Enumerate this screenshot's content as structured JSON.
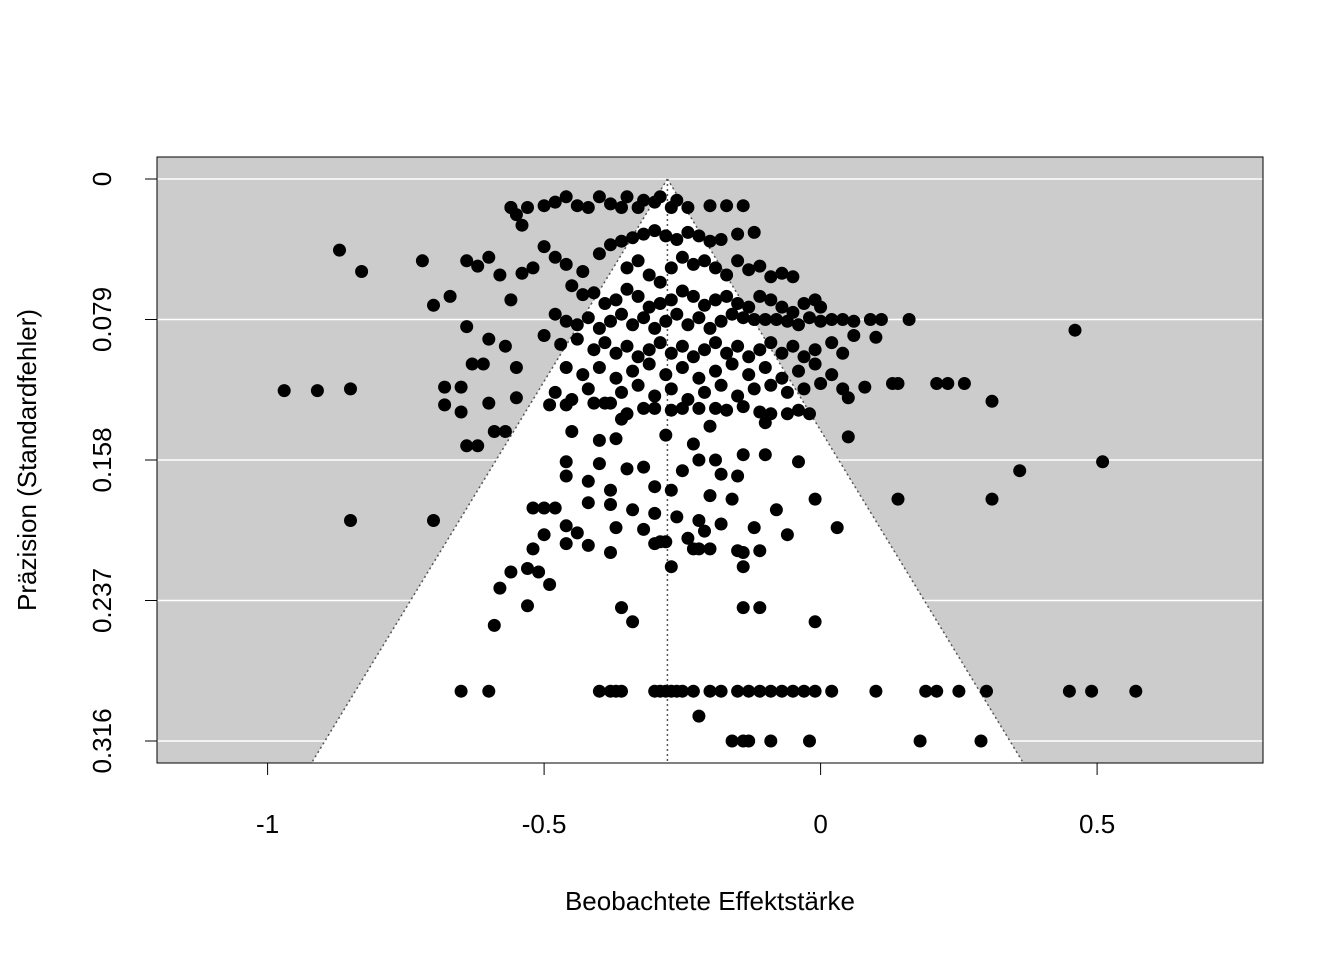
{
  "chart_data": {
    "type": "scatter",
    "title": "",
    "xlabel": "Beobachtete Effektstärke",
    "ylabel": "Präzision (Standardfehler)",
    "xlim": [
      -1.2,
      0.8
    ],
    "ylim": [
      0.316,
      0.0
    ],
    "y_reversed": true,
    "x_ticks": [
      {
        "value": -1,
        "label": "-1"
      },
      {
        "value": -0.5,
        "label": "-0.5"
      },
      {
        "value": 0,
        "label": "0"
      },
      {
        "value": 0.5,
        "label": "0.5"
      }
    ],
    "y_ticks": [
      {
        "value": 0.0,
        "label": "0"
      },
      {
        "value": 0.079,
        "label": "0.079"
      },
      {
        "value": 0.158,
        "label": "0.158"
      },
      {
        "value": 0.237,
        "label": "0.237"
      },
      {
        "value": 0.316,
        "label": "0.316"
      }
    ],
    "grid": "horizontal",
    "funnel": {
      "center": -0.277,
      "z": 1.96,
      "se_max": 0.33
    },
    "colors": {
      "background": "#cccccc",
      "funnel": "#ffffff",
      "grid": "#ffffff",
      "points": "#000000"
    },
    "points": [
      [
        -0.97,
        0.119
      ],
      [
        -0.91,
        0.119
      ],
      [
        -0.85,
        0.118
      ],
      [
        -0.87,
        0.04
      ],
      [
        -0.83,
        0.052
      ],
      [
        -0.85,
        0.192
      ],
      [
        -0.7,
        0.192
      ],
      [
        -0.72,
        0.046
      ],
      [
        -0.7,
        0.071
      ],
      [
        -0.67,
        0.066
      ],
      [
        -0.64,
        0.046
      ],
      [
        -0.62,
        0.049
      ],
      [
        -0.6,
        0.044
      ],
      [
        -0.58,
        0.054
      ],
      [
        -0.56,
        0.068
      ],
      [
        -0.54,
        0.053
      ],
      [
        -0.52,
        0.05
      ],
      [
        -0.65,
        0.117
      ],
      [
        -0.68,
        0.117
      ],
      [
        -0.68,
        0.127
      ],
      [
        -0.65,
        0.131
      ],
      [
        -0.6,
        0.126
      ],
      [
        -0.64,
        0.083
      ],
      [
        -0.6,
        0.09
      ],
      [
        -0.57,
        0.094
      ],
      [
        -0.61,
        0.104
      ],
      [
        -0.63,
        0.104
      ],
      [
        -0.55,
        0.106
      ],
      [
        -0.55,
        0.123
      ],
      [
        -0.59,
        0.142
      ],
      [
        -0.57,
        0.142
      ],
      [
        -0.62,
        0.15
      ],
      [
        -0.64,
        0.15
      ],
      [
        -0.56,
        0.016
      ],
      [
        -0.55,
        0.02
      ],
      [
        -0.54,
        0.026
      ],
      [
        -0.53,
        0.016
      ],
      [
        -0.56,
        0.016
      ],
      [
        -0.5,
        0.015
      ],
      [
        -0.48,
        0.013
      ],
      [
        -0.46,
        0.01
      ],
      [
        -0.44,
        0.015
      ],
      [
        -0.42,
        0.016
      ],
      [
        -0.4,
        0.01
      ],
      [
        -0.38,
        0.014
      ],
      [
        -0.35,
        0.01
      ],
      [
        -0.32,
        0.012
      ],
      [
        -0.3,
        0.013
      ],
      [
        -0.27,
        0.016
      ],
      [
        -0.24,
        0.016
      ],
      [
        -0.2,
        0.015
      ],
      [
        -0.17,
        0.015
      ],
      [
        -0.14,
        0.015
      ],
      [
        -0.36,
        0.016
      ],
      [
        -0.33,
        0.016
      ],
      [
        -0.29,
        0.01
      ],
      [
        -0.26,
        0.012
      ],
      [
        -0.5,
        0.038
      ],
      [
        -0.48,
        0.044
      ],
      [
        -0.46,
        0.048
      ],
      [
        -0.43,
        0.052
      ],
      [
        -0.4,
        0.042
      ],
      [
        -0.38,
        0.037
      ],
      [
        -0.36,
        0.035
      ],
      [
        -0.34,
        0.033
      ],
      [
        -0.32,
        0.031
      ],
      [
        -0.3,
        0.029
      ],
      [
        -0.28,
        0.032
      ],
      [
        -0.26,
        0.034
      ],
      [
        -0.24,
        0.03
      ],
      [
        -0.22,
        0.032
      ],
      [
        -0.2,
        0.035
      ],
      [
        -0.18,
        0.034
      ],
      [
        -0.15,
        0.031
      ],
      [
        -0.12,
        0.03
      ],
      [
        -0.35,
        0.05
      ],
      [
        -0.33,
        0.046
      ],
      [
        -0.31,
        0.054
      ],
      [
        -0.29,
        0.058
      ],
      [
        -0.27,
        0.05
      ],
      [
        -0.25,
        0.044
      ],
      [
        -0.23,
        0.048
      ],
      [
        -0.21,
        0.046
      ],
      [
        -0.19,
        0.05
      ],
      [
        -0.17,
        0.054
      ],
      [
        -0.15,
        0.046
      ],
      [
        -0.13,
        0.051
      ],
      [
        -0.11,
        0.049
      ],
      [
        -0.09,
        0.055
      ],
      [
        -0.07,
        0.053
      ],
      [
        -0.05,
        0.055
      ],
      [
        -0.45,
        0.06
      ],
      [
        -0.43,
        0.065
      ],
      [
        -0.41,
        0.064
      ],
      [
        -0.39,
        0.07
      ],
      [
        -0.37,
        0.068
      ],
      [
        -0.35,
        0.062
      ],
      [
        -0.33,
        0.066
      ],
      [
        -0.31,
        0.072
      ],
      [
        -0.29,
        0.07
      ],
      [
        -0.27,
        0.068
      ],
      [
        -0.25,
        0.063
      ],
      [
        -0.23,
        0.066
      ],
      [
        -0.21,
        0.071
      ],
      [
        -0.19,
        0.068
      ],
      [
        -0.17,
        0.066
      ],
      [
        -0.15,
        0.07
      ],
      [
        -0.13,
        0.072
      ],
      [
        -0.11,
        0.066
      ],
      [
        -0.09,
        0.068
      ],
      [
        -0.07,
        0.072
      ],
      [
        -0.05,
        0.075
      ],
      [
        -0.03,
        0.07
      ],
      [
        -0.01,
        0.068
      ],
      [
        0.0,
        0.072
      ],
      [
        -0.48,
        0.076
      ],
      [
        -0.46,
        0.08
      ],
      [
        -0.44,
        0.082
      ],
      [
        -0.42,
        0.078
      ],
      [
        -0.4,
        0.084
      ],
      [
        -0.38,
        0.08
      ],
      [
        -0.36,
        0.076
      ],
      [
        -0.34,
        0.082
      ],
      [
        -0.32,
        0.078
      ],
      [
        -0.3,
        0.084
      ],
      [
        -0.28,
        0.08
      ],
      [
        -0.26,
        0.076
      ],
      [
        -0.24,
        0.082
      ],
      [
        -0.22,
        0.078
      ],
      [
        -0.2,
        0.084
      ],
      [
        -0.18,
        0.08
      ],
      [
        -0.16,
        0.076
      ],
      [
        -0.14,
        0.078
      ],
      [
        -0.12,
        0.079
      ],
      [
        -0.1,
        0.079
      ],
      [
        -0.08,
        0.079
      ],
      [
        -0.06,
        0.08
      ],
      [
        -0.04,
        0.082
      ],
      [
        -0.02,
        0.078
      ],
      [
        0.0,
        0.08
      ],
      [
        0.02,
        0.079
      ],
      [
        0.04,
        0.079
      ],
      [
        0.06,
        0.08
      ],
      [
        0.09,
        0.079
      ],
      [
        0.11,
        0.079
      ],
      [
        0.16,
        0.079
      ],
      [
        -0.5,
        0.088
      ],
      [
        -0.47,
        0.093
      ],
      [
        -0.44,
        0.09
      ],
      [
        -0.41,
        0.096
      ],
      [
        -0.39,
        0.092
      ],
      [
        -0.37,
        0.098
      ],
      [
        -0.35,
        0.094
      ],
      [
        -0.33,
        0.1
      ],
      [
        -0.31,
        0.096
      ],
      [
        -0.29,
        0.092
      ],
      [
        -0.27,
        0.098
      ],
      [
        -0.25,
        0.094
      ],
      [
        -0.23,
        0.1
      ],
      [
        -0.21,
        0.096
      ],
      [
        -0.19,
        0.092
      ],
      [
        -0.17,
        0.098
      ],
      [
        -0.15,
        0.094
      ],
      [
        -0.13,
        0.1
      ],
      [
        -0.11,
        0.096
      ],
      [
        -0.09,
        0.092
      ],
      [
        -0.07,
        0.098
      ],
      [
        -0.05,
        0.094
      ],
      [
        -0.03,
        0.1
      ],
      [
        -0.01,
        0.096
      ],
      [
        0.02,
        0.092
      ],
      [
        0.04,
        0.098
      ],
      [
        0.06,
        0.088
      ],
      [
        0.1,
        0.089
      ],
      [
        -0.46,
        0.106
      ],
      [
        -0.43,
        0.11
      ],
      [
        -0.4,
        0.106
      ],
      [
        -0.37,
        0.112
      ],
      [
        -0.34,
        0.108
      ],
      [
        -0.31,
        0.104
      ],
      [
        -0.28,
        0.11
      ],
      [
        -0.25,
        0.106
      ],
      [
        -0.22,
        0.112
      ],
      [
        -0.19,
        0.108
      ],
      [
        -0.16,
        0.104
      ],
      [
        -0.13,
        0.11
      ],
      [
        -0.1,
        0.106
      ],
      [
        -0.07,
        0.112
      ],
      [
        -0.04,
        0.108
      ],
      [
        -0.01,
        0.104
      ],
      [
        0.02,
        0.11
      ],
      [
        -0.48,
        0.12
      ],
      [
        -0.45,
        0.124
      ],
      [
        -0.42,
        0.118
      ],
      [
        -0.39,
        0.126
      ],
      [
        -0.36,
        0.12
      ],
      [
        -0.33,
        0.116
      ],
      [
        -0.3,
        0.122
      ],
      [
        -0.27,
        0.118
      ],
      [
        -0.24,
        0.124
      ],
      [
        -0.21,
        0.12
      ],
      [
        -0.18,
        0.116
      ],
      [
        -0.15,
        0.122
      ],
      [
        -0.12,
        0.118
      ],
      [
        -0.09,
        0.116
      ],
      [
        -0.06,
        0.12
      ],
      [
        -0.03,
        0.118
      ],
      [
        0.0,
        0.115
      ],
      [
        0.04,
        0.118
      ],
      [
        0.08,
        0.117
      ],
      [
        0.13,
        0.115
      ],
      [
        0.14,
        0.115
      ],
      [
        0.21,
        0.115
      ],
      [
        0.23,
        0.115
      ],
      [
        0.26,
        0.115
      ],
      [
        0.05,
        0.123
      ],
      [
        0.31,
        0.125
      ],
      [
        -0.49,
        0.127
      ],
      [
        -0.46,
        0.127
      ],
      [
        -0.41,
        0.126
      ],
      [
        -0.38,
        0.126
      ],
      [
        -0.35,
        0.132
      ],
      [
        -0.32,
        0.129
      ],
      [
        -0.3,
        0.129
      ],
      [
        -0.27,
        0.13
      ],
      [
        -0.25,
        0.129
      ],
      [
        -0.22,
        0.129
      ],
      [
        -0.19,
        0.129
      ],
      [
        -0.17,
        0.13
      ],
      [
        -0.14,
        0.128
      ],
      [
        -0.11,
        0.131
      ],
      [
        -0.09,
        0.132
      ],
      [
        -0.06,
        0.132
      ],
      [
        -0.04,
        0.13
      ],
      [
        -0.02,
        0.132
      ],
      [
        -0.36,
        0.135
      ],
      [
        -0.2,
        0.139
      ],
      [
        -0.1,
        0.137
      ],
      [
        -0.45,
        0.142
      ],
      [
        -0.4,
        0.147
      ],
      [
        -0.37,
        0.146
      ],
      [
        -0.28,
        0.144
      ],
      [
        -0.23,
        0.149
      ],
      [
        -0.19,
        0.158
      ],
      [
        -0.14,
        0.155
      ],
      [
        -0.22,
        0.158
      ],
      [
        -0.46,
        0.159
      ],
      [
        -0.4,
        0.16
      ],
      [
        -0.35,
        0.163
      ],
      [
        -0.32,
        0.162
      ],
      [
        -0.25,
        0.164
      ],
      [
        -0.18,
        0.166
      ],
      [
        -0.15,
        0.167
      ],
      [
        -0.1,
        0.155
      ],
      [
        -0.04,
        0.159
      ],
      [
        0.05,
        0.145
      ],
      [
        -0.46,
        0.167
      ],
      [
        -0.42,
        0.17
      ],
      [
        -0.38,
        0.175
      ],
      [
        -0.3,
        0.173
      ],
      [
        -0.27,
        0.175
      ],
      [
        -0.2,
        0.178
      ],
      [
        -0.16,
        0.18
      ],
      [
        -0.48,
        0.185
      ],
      [
        -0.42,
        0.182
      ],
      [
        -0.38,
        0.183
      ],
      [
        -0.34,
        0.186
      ],
      [
        -0.3,
        0.188
      ],
      [
        -0.26,
        0.19
      ],
      [
        -0.22,
        0.192
      ],
      [
        -0.18,
        0.194
      ],
      [
        -0.12,
        0.196
      ],
      [
        -0.08,
        0.186
      ],
      [
        -0.01,
        0.18
      ],
      [
        0.14,
        0.18
      ],
      [
        0.31,
        0.18
      ],
      [
        -0.5,
        0.185
      ],
      [
        -0.52,
        0.185
      ],
      [
        -0.46,
        0.195
      ],
      [
        -0.44,
        0.199
      ],
      [
        -0.37,
        0.196
      ],
      [
        -0.32,
        0.197
      ],
      [
        -0.28,
        0.204
      ],
      [
        -0.24,
        0.202
      ],
      [
        -0.21,
        0.198
      ],
      [
        -0.2,
        0.208
      ],
      [
        -0.14,
        0.21
      ],
      [
        -0.06,
        0.2
      ],
      [
        0.03,
        0.196
      ],
      [
        -0.5,
        0.2
      ],
      [
        -0.52,
        0.208
      ],
      [
        -0.46,
        0.205
      ],
      [
        -0.42,
        0.206
      ],
      [
        -0.38,
        0.21
      ],
      [
        -0.3,
        0.205
      ],
      [
        -0.29,
        0.204
      ],
      [
        -0.22,
        0.208
      ],
      [
        -0.23,
        0.208
      ],
      [
        -0.15,
        0.209
      ],
      [
        -0.11,
        0.209
      ],
      [
        -0.56,
        0.221
      ],
      [
        -0.53,
        0.219
      ],
      [
        -0.49,
        0.228
      ],
      [
        -0.51,
        0.221
      ],
      [
        -0.27,
        0.218
      ],
      [
        -0.14,
        0.218
      ],
      [
        -0.58,
        0.23
      ],
      [
        -0.53,
        0.24
      ],
      [
        -0.36,
        0.241
      ],
      [
        -0.34,
        0.249
      ],
      [
        -0.14,
        0.241
      ],
      [
        -0.11,
        0.241
      ],
      [
        -0.01,
        0.249
      ],
      [
        -0.59,
        0.251
      ],
      [
        -0.65,
        0.288
      ],
      [
        -0.6,
        0.288
      ],
      [
        -0.4,
        0.288
      ],
      [
        -0.38,
        0.288
      ],
      [
        -0.37,
        0.288
      ],
      [
        -0.36,
        0.288
      ],
      [
        -0.3,
        0.288
      ],
      [
        -0.29,
        0.288
      ],
      [
        -0.28,
        0.288
      ],
      [
        -0.27,
        0.288
      ],
      [
        -0.26,
        0.288
      ],
      [
        -0.25,
        0.288
      ],
      [
        -0.23,
        0.288
      ],
      [
        -0.2,
        0.288
      ],
      [
        -0.18,
        0.288
      ],
      [
        -0.15,
        0.288
      ],
      [
        -0.13,
        0.288
      ],
      [
        -0.11,
        0.288
      ],
      [
        -0.09,
        0.288
      ],
      [
        -0.07,
        0.288
      ],
      [
        -0.05,
        0.288
      ],
      [
        -0.03,
        0.288
      ],
      [
        -0.01,
        0.288
      ],
      [
        0.02,
        0.288
      ],
      [
        0.1,
        0.288
      ],
      [
        0.19,
        0.288
      ],
      [
        0.21,
        0.288
      ],
      [
        0.25,
        0.288
      ],
      [
        0.3,
        0.288
      ],
      [
        0.45,
        0.288
      ],
      [
        0.49,
        0.288
      ],
      [
        0.57,
        0.288
      ],
      [
        -0.22,
        0.302
      ],
      [
        -0.16,
        0.316
      ],
      [
        -0.14,
        0.316
      ],
      [
        -0.13,
        0.316
      ],
      [
        -0.09,
        0.316
      ],
      [
        -0.02,
        0.316
      ],
      [
        0.18,
        0.316
      ],
      [
        0.29,
        0.316
      ],
      [
        0.46,
        0.085
      ],
      [
        0.51,
        0.159
      ],
      [
        0.36,
        0.164
      ]
    ]
  }
}
